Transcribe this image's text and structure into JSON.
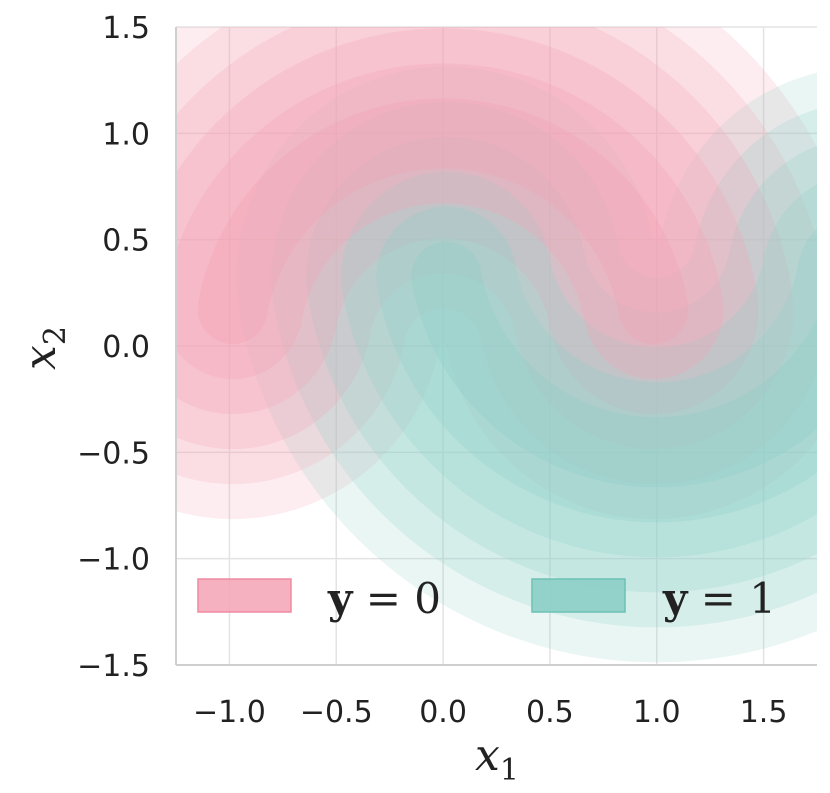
{
  "chart_data": {
    "type": "contour",
    "title": "",
    "xlabel": "x",
    "xlabel_sub": "1",
    "ylabel": "x",
    "ylabel_sub": "2",
    "xlim": [
      -1.25,
      1.75
    ],
    "ylim": [
      -1.5,
      1.5
    ],
    "x_ticks": [
      -1.0,
      -0.5,
      0.0,
      0.5,
      1.0,
      1.5
    ],
    "x_tick_labels": [
      "−1.0",
      "−0.5",
      "0.0",
      "0.5",
      "1.0",
      "1.5"
    ],
    "y_ticks": [
      -1.5,
      -1.0,
      -0.5,
      0.0,
      0.5,
      1.0,
      1.5
    ],
    "y_tick_labels": [
      "−1.5",
      "−1.0",
      "−0.5",
      "0.0",
      "0.5",
      "1.0",
      "1.5"
    ],
    "grid": true,
    "legend_position": "bottom",
    "series": [
      {
        "name_prefix": "y",
        "name_value": "= 0",
        "color": "#f4a3b5",
        "arc_center": [
          0.0,
          0.0
        ],
        "arc_radius": 1.0,
        "arc_angle_range_deg": [
          10,
          170
        ],
        "levels": [
          0.35,
          0.28,
          0.22,
          0.17,
          0.13,
          0.1
        ]
      },
      {
        "name_prefix": "y",
        "name_value": "= 1",
        "color": "#8fd0c8",
        "arc_center": [
          1.0,
          0.5
        ],
        "arc_radius": 1.0,
        "arc_angle_range_deg": [
          190,
          350
        ],
        "levels": [
          0.35,
          0.28,
          0.22,
          0.17,
          0.13,
          0.1
        ]
      }
    ]
  }
}
